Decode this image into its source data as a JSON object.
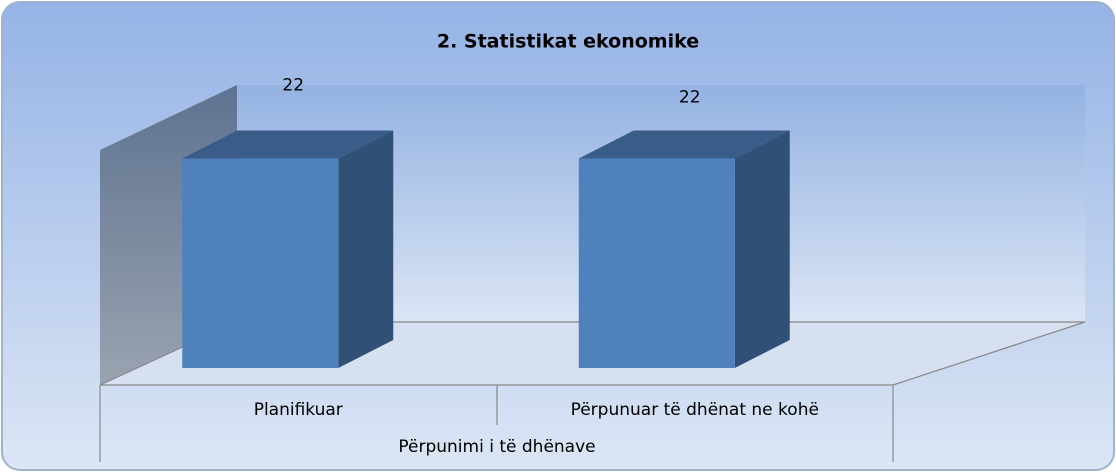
{
  "chart_data": {
    "type": "bar",
    "title": "2. Statistikat ekonomike",
    "categories": [
      "Planifikuar",
      "Përpunuar të dhënat ne kohë"
    ],
    "category_group": "Përpunimi i të dhënave",
    "values": [
      22,
      22
    ],
    "color": "#4f81bd",
    "ylim": [
      0,
      25
    ]
  }
}
